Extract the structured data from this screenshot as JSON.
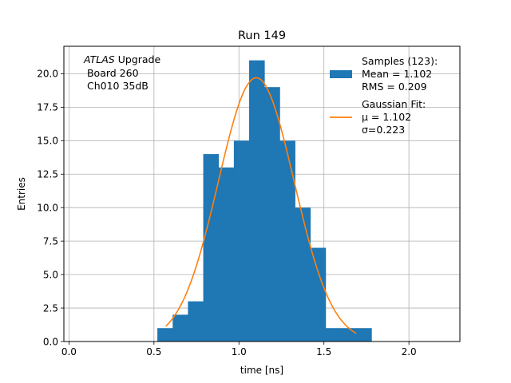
{
  "chart_data": {
    "type": "bar",
    "title": "Run 149",
    "xlabel": "time [ns]",
    "ylabel": "Entries",
    "xlim": [
      -0.03,
      2.3
    ],
    "ylim": [
      0,
      22.05
    ],
    "grid": true,
    "x_ticks": [
      0.0,
      0.5,
      1.0,
      1.5,
      2.0
    ],
    "x_tick_labels": [
      "0.0",
      "0.5",
      "1.0",
      "1.5",
      "2.0"
    ],
    "y_ticks": [
      0.0,
      2.5,
      5.0,
      7.5,
      10.0,
      12.5,
      15.0,
      17.5,
      20.0
    ],
    "y_tick_labels": [
      "0.0",
      "2.5",
      "5.0",
      "7.5",
      "10.0",
      "12.5",
      "15.0",
      "17.5",
      "20.0"
    ],
    "annotation": {
      "italic": "ATLAS",
      "line1_rest": " Upgrade",
      "line2": " Board 260",
      "line3": " Ch010 35dB"
    },
    "series": [
      {
        "kind": "histogram",
        "color": "#1f77b4",
        "bins": [
          {
            "x0": 0.52,
            "x1": 0.61,
            "count": 1
          },
          {
            "x0": 0.61,
            "x1": 0.7,
            "count": 2
          },
          {
            "x0": 0.7,
            "x1": 0.79,
            "count": 3
          },
          {
            "x0": 0.79,
            "x1": 0.88,
            "count": 14
          },
          {
            "x0": 0.88,
            "x1": 0.97,
            "count": 13
          },
          {
            "x0": 0.97,
            "x1": 1.06,
            "count": 15
          },
          {
            "x0": 1.06,
            "x1": 1.15,
            "count": 21
          },
          {
            "x0": 1.15,
            "x1": 1.24,
            "count": 19
          },
          {
            "x0": 1.24,
            "x1": 1.33,
            "count": 15
          },
          {
            "x0": 1.33,
            "x1": 1.42,
            "count": 10
          },
          {
            "x0": 1.42,
            "x1": 1.51,
            "count": 7
          },
          {
            "x0": 1.51,
            "x1": 1.6,
            "count": 1
          },
          {
            "x0": 1.6,
            "x1": 1.69,
            "count": 1
          },
          {
            "x0": 1.69,
            "x1": 1.78,
            "count": 1
          }
        ]
      },
      {
        "kind": "gaussian_fit",
        "color": "#ff7f0e",
        "mu": 1.102,
        "sigma": 0.223,
        "amplitude": 19.7,
        "x_range": [
          0.57,
          1.69
        ]
      }
    ],
    "legend": {
      "position": "top-right",
      "entries": [
        {
          "marker": "patch",
          "color": "#1f77b4",
          "lines": [
            "Samples (123):",
            " Mean = 1.102",
            " RMS = 0.209"
          ]
        },
        {
          "marker": "line",
          "color": "#ff7f0e",
          "lines": [
            "Gaussian Fit:",
            " μ = 1.102",
            " σ=0.223"
          ]
        }
      ]
    }
  }
}
